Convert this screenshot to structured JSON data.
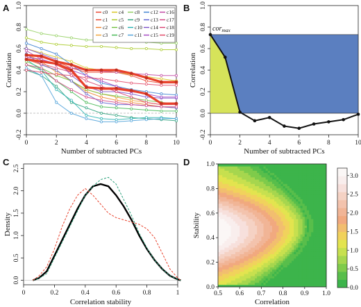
{
  "panels": {
    "A": {
      "letter": "A"
    },
    "B": {
      "letter": "B"
    },
    "C": {
      "letter": "C"
    },
    "D": {
      "letter": "D"
    }
  },
  "chart_data": [
    {
      "panel": "A",
      "type": "line",
      "xlabel": "Number of subtracted PCs",
      "ylabel": "Correlation",
      "xlim": [
        0,
        10
      ],
      "ylim": [
        -0.2,
        1.0
      ],
      "xticks": [
        0,
        2,
        4,
        6,
        8,
        10
      ],
      "yticks": [
        -0.2,
        0.0,
        0.2,
        0.4,
        0.6,
        0.8,
        1.0
      ],
      "x": [
        0,
        1,
        2,
        3,
        4,
        5,
        6,
        7,
        8,
        9,
        10
      ],
      "legend_placement": "top-right",
      "series": [
        {
          "name": "c0",
          "color": "#e8402a",
          "values": [
            0.55,
            0.52,
            0.48,
            0.42,
            0.38,
            0.38,
            0.38,
            0.35,
            0.3,
            0.28,
            0.28
          ]
        },
        {
          "name": "c1",
          "color": "#e8402a",
          "values": [
            0.52,
            0.5,
            0.45,
            0.38,
            0.25,
            0.22,
            0.22,
            0.2,
            0.18,
            0.1,
            0.08
          ]
        },
        {
          "name": "c2",
          "color": "#f07f2a",
          "values": [
            0.5,
            0.45,
            0.4,
            0.3,
            0.2,
            0.15,
            0.12,
            0.1,
            0.08,
            0.06,
            0.05
          ]
        },
        {
          "name": "c3",
          "color": "#f0a030",
          "values": [
            0.55,
            0.48,
            0.38,
            0.3,
            0.22,
            0.18,
            0.15,
            0.12,
            0.1,
            0.08,
            0.08
          ]
        },
        {
          "name": "c4",
          "color": "#d6c31a",
          "values": [
            0.6,
            0.56,
            0.52,
            0.48,
            0.42,
            0.4,
            0.38,
            0.36,
            0.34,
            0.32,
            0.3
          ]
        },
        {
          "name": "c5",
          "color": "#a6c820",
          "values": [
            0.7,
            0.66,
            0.64,
            0.63,
            0.62,
            0.62,
            0.61,
            0.6,
            0.6,
            0.59,
            0.59
          ]
        },
        {
          "name": "c6",
          "color": "#6fbf3c",
          "values": [
            0.48,
            0.42,
            0.35,
            0.3,
            0.22,
            0.18,
            0.16,
            0.14,
            0.12,
            0.1,
            0.09
          ]
        },
        {
          "name": "c7",
          "color": "#3cb44b",
          "values": [
            0.45,
            0.4,
            0.3,
            0.2,
            0.1,
            0.06,
            0.05,
            0.04,
            0.03,
            0.02,
            0.02
          ]
        },
        {
          "name": "c8",
          "color": "#8fce5a",
          "values": [
            0.78,
            0.74,
            0.72,
            0.7,
            0.68,
            0.68,
            0.67,
            0.67,
            0.66,
            0.65,
            0.65
          ]
        },
        {
          "name": "c9",
          "color": "#2aa07a",
          "values": [
            0.4,
            0.35,
            0.25,
            0.1,
            0.05,
            0.0,
            -0.02,
            -0.04,
            -0.05,
            -0.06,
            -0.07
          ]
        },
        {
          "name": "c10",
          "color": "#22b0b0",
          "values": [
            0.5,
            0.4,
            0.22,
            0.12,
            -0.02,
            -0.05,
            -0.06,
            -0.05,
            -0.04,
            -0.04,
            -0.05
          ]
        },
        {
          "name": "c11",
          "color": "#4a9fd8",
          "values": [
            0.42,
            0.35,
            0.1,
            0.0,
            -0.05,
            -0.08,
            -0.08,
            -0.07,
            -0.06,
            -0.05,
            -0.05
          ]
        },
        {
          "name": "c12",
          "color": "#3a7fd0",
          "values": [
            0.65,
            0.6,
            0.55,
            0.45,
            0.35,
            0.28,
            0.25,
            0.22,
            0.2,
            0.18,
            0.17
          ]
        },
        {
          "name": "c13",
          "color": "#5a5fd0",
          "values": [
            0.55,
            0.45,
            0.4,
            0.3,
            0.18,
            0.1,
            0.08,
            0.08,
            0.07,
            0.06,
            0.05
          ]
        },
        {
          "name": "c14",
          "color": "#7a4fc8",
          "values": [
            0.6,
            0.55,
            0.5,
            0.35,
            0.25,
            0.2,
            0.2,
            0.18,
            0.15,
            0.14,
            0.14
          ]
        },
        {
          "name": "c15",
          "color": "#a040c0",
          "values": [
            0.52,
            0.5,
            0.46,
            0.4,
            0.35,
            0.3,
            0.25,
            0.2,
            0.18,
            0.15,
            0.15
          ]
        },
        {
          "name": "c16",
          "color": "#c040a0",
          "values": [
            0.58,
            0.5,
            0.45,
            0.42,
            0.4,
            0.39,
            0.38,
            0.37,
            0.36,
            0.35,
            0.35
          ]
        },
        {
          "name": "c17",
          "color": "#d04080",
          "values": [
            0.45,
            0.42,
            0.3,
            0.22,
            0.15,
            0.12,
            0.1,
            0.08,
            0.07,
            0.06,
            0.06
          ]
        },
        {
          "name": "c18",
          "color": "#d84070",
          "values": [
            0.5,
            0.46,
            0.42,
            0.38,
            0.3,
            0.25,
            0.2,
            0.15,
            0.1,
            0.08,
            0.08
          ]
        },
        {
          "name": "c19",
          "color": "#e04060",
          "values": [
            0.4,
            0.38,
            0.36,
            0.35,
            0.33,
            0.32,
            0.3,
            0.28,
            0.27,
            0.26,
            0.26
          ]
        }
      ],
      "highlight_series": [
        {
          "values": [
            0.54,
            0.53,
            0.48,
            0.45,
            0.4,
            0.4,
            0.4,
            0.37,
            0.33,
            0.29,
            0.29
          ],
          "color": "#e8402a"
        },
        {
          "values": [
            0.5,
            0.48,
            0.46,
            0.4,
            0.24,
            0.23,
            0.23,
            0.21,
            0.18,
            0.09,
            0.09
          ],
          "color": "#e8402a"
        }
      ]
    },
    {
      "panel": "B",
      "type": "line",
      "xlabel": "Number of subtracted PCs",
      "ylabel": "Correlation",
      "annotation": "cor",
      "annotation_sub": "max",
      "xlim": [
        0,
        10
      ],
      "ylim": [
        -0.2,
        1.0
      ],
      "xticks": [
        0,
        2,
        4,
        6,
        8,
        10
      ],
      "yticks": [
        -0.2,
        0.0,
        0.2,
        0.4,
        0.6,
        0.8,
        1.0
      ],
      "x": [
        0,
        1,
        2,
        3,
        4,
        5,
        6,
        7,
        8,
        9,
        10
      ],
      "values": [
        0.73,
        0.52,
        0.01,
        -0.07,
        -0.04,
        -0.12,
        -0.14,
        -0.1,
        -0.08,
        -0.06,
        -0.01
      ],
      "cor_max": 0.73,
      "colors": {
        "rect": "#5b7fc0",
        "area": "#d6e35a",
        "line": "#111111"
      }
    },
    {
      "panel": "C",
      "type": "line",
      "xlabel": "Correlation stability",
      "ylabel": "Density",
      "xlim": [
        0.0,
        1.0
      ],
      "ylim": [
        -0.1,
        2.6
      ],
      "xticks": [
        0.0,
        0.2,
        0.4,
        0.6,
        0.8,
        1.0
      ],
      "yticks": [
        0.0,
        0.5,
        1.0,
        1.5,
        2.0,
        2.5
      ],
      "x": [
        0.06,
        0.1,
        0.15,
        0.2,
        0.25,
        0.3,
        0.35,
        0.4,
        0.45,
        0.5,
        0.55,
        0.6,
        0.65,
        0.7,
        0.75,
        0.8,
        0.85,
        0.9,
        0.95,
        1.0,
        1.02
      ],
      "series": [
        {
          "style": "solid",
          "color": "#000000",
          "values": [
            0.0,
            0.05,
            0.2,
            0.55,
            0.9,
            1.25,
            1.6,
            1.9,
            2.1,
            2.15,
            2.1,
            1.9,
            1.65,
            1.35,
            1.0,
            0.7,
            0.45,
            0.25,
            0.1,
            0.02,
            0.0
          ]
        },
        {
          "style": "dashed",
          "color": "#2aa07a",
          "values": [
            0.0,
            0.04,
            0.15,
            0.5,
            0.85,
            1.2,
            1.55,
            1.9,
            2.1,
            2.25,
            2.3,
            2.15,
            1.8,
            1.45,
            1.05,
            0.72,
            0.45,
            0.25,
            0.1,
            0.02,
            0.0
          ]
        },
        {
          "style": "dashed",
          "color": "#e8402a",
          "values": [
            0.0,
            0.1,
            0.3,
            0.7,
            1.2,
            1.6,
            1.9,
            2.05,
            1.9,
            1.7,
            1.5,
            1.4,
            1.35,
            1.3,
            1.25,
            1.15,
            0.95,
            0.6,
            0.25,
            0.05,
            0.0
          ]
        }
      ]
    },
    {
      "panel": "D",
      "type": "heatmap",
      "xlabel": "Correlation",
      "ylabel": "Stability",
      "xlim": [
        0.5,
        1.0
      ],
      "ylim": [
        0.0,
        1.0
      ],
      "xticks": [
        0.5,
        0.6,
        0.7,
        0.8,
        0.9,
        1.0
      ],
      "yticks": [
        0.0,
        0.2,
        0.4,
        0.6,
        0.8,
        1.0
      ],
      "colorbar_ticks": [
        0.0,
        0.5,
        1.0,
        1.5,
        2.0,
        2.5,
        3.0
      ],
      "colorbar_range": [
        0.0,
        3.2
      ],
      "colorbar_colors": [
        "#3cb44b",
        "#58be4b",
        "#7fcb4b",
        "#a6d64e",
        "#c7e04f",
        "#e3e44f",
        "#f1d25c",
        "#f2be6f",
        "#f1a97f",
        "#f1b596",
        "#f3c3ad",
        "#f5d2c4",
        "#f7e0dc",
        "#f9eeed",
        "#fbf7f6"
      ]
    }
  ]
}
